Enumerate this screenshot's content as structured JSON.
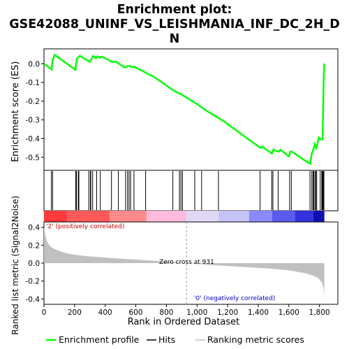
{
  "chart_data": {
    "type": "line",
    "title_lines": [
      "Enrichment plot:",
      "GSE42088_UNINF_VS_LEISHMANIA_INF_DC_2H_D",
      "N"
    ],
    "top_panel": {
      "ylabel": "Enrichment score (ES)",
      "ylim": [
        -0.57,
        0.08
      ],
      "yticks": [
        0.0,
        -0.1,
        -0.2,
        -0.3,
        -0.4,
        -0.5
      ],
      "ytick_labels": [
        "0.0",
        "-0.1",
        "-0.2",
        "-0.3",
        "-0.4",
        "-0.5"
      ],
      "line_color": "#00ff00",
      "series": [
        {
          "x": [
            0,
            50,
            55,
            70,
            205,
            215,
            235,
            300,
            320,
            340,
            350,
            365,
            380,
            445,
            470,
            500,
            530,
            545,
            560,
            575,
            590,
            600,
            660,
            680,
            710,
            790,
            850,
            900,
            950,
            1000,
            1050,
            1100,
            1150,
            1180,
            1220,
            1280,
            1330,
            1380,
            1415,
            1425,
            1445,
            1490,
            1500,
            1510,
            1535,
            1545,
            1560,
            1600,
            1610,
            1620,
            1700,
            1740,
            1750,
            1760,
            1770,
            1780,
            1795,
            1805,
            1820,
            1828,
            1832
          ],
          "y": [
            0.0,
            -0.03,
            0.015,
            0.048,
            -0.032,
            0.028,
            0.043,
            0.01,
            0.042,
            0.03,
            0.04,
            0.032,
            0.038,
            0.01,
            0.012,
            -0.005,
            -0.02,
            -0.012,
            -0.012,
            -0.018,
            -0.014,
            -0.02,
            -0.045,
            -0.055,
            -0.065,
            -0.11,
            -0.145,
            -0.165,
            -0.19,
            -0.215,
            -0.245,
            -0.27,
            -0.295,
            -0.31,
            -0.335,
            -0.37,
            -0.4,
            -0.43,
            -0.45,
            -0.443,
            -0.455,
            -0.48,
            -0.458,
            -0.465,
            -0.47,
            -0.46,
            -0.47,
            -0.495,
            -0.47,
            -0.47,
            -0.515,
            -0.535,
            -0.48,
            -0.46,
            -0.43,
            -0.45,
            -0.395,
            -0.405,
            -0.405,
            -0.07,
            0.002
          ]
        }
      ]
    },
    "hits": [
      48,
      57,
      207,
      212,
      224,
      228,
      293,
      303,
      306,
      318,
      344,
      368,
      441,
      486,
      533,
      546,
      556,
      566,
      588,
      664,
      842,
      885,
      895,
      905,
      985,
      1030,
      1140,
      1412,
      1488,
      1496,
      1530,
      1605,
      1616,
      1738,
      1750,
      1758,
      1762,
      1770,
      1776,
      1782,
      1805,
      1815,
      1818,
      1822,
      1825,
      1829
    ],
    "color_bar": {
      "stops": [
        "#ff3333",
        "#ff5555",
        "#ff8080",
        "#ffb0cc",
        "#e8b8e8",
        "#d0d0f8",
        "#a8a8f8",
        "#7070ff",
        "#4444ee",
        "#2222cc",
        "#0000aa"
      ],
      "bands": [
        {
          "x0": 0,
          "x1": 150,
          "color": "#ff3a3a"
        },
        {
          "x0": 150,
          "x1": 430,
          "color": "#ff5a5a"
        },
        {
          "x0": 430,
          "x1": 670,
          "color": "#ff8a8a"
        },
        {
          "x0": 670,
          "x1": 930,
          "color": "#ffbbdd"
        },
        {
          "x0": 930,
          "x1": 1140,
          "color": "#e0d8f4"
        },
        {
          "x0": 1140,
          "x1": 1340,
          "color": "#c4c4f6"
        },
        {
          "x0": 1340,
          "x1": 1490,
          "color": "#8a8aff"
        },
        {
          "x0": 1490,
          "x1": 1640,
          "color": "#5a5af0"
        },
        {
          "x0": 1640,
          "x1": 1760,
          "color": "#3333dd"
        },
        {
          "x0": 1760,
          "x1": 1832,
          "color": "#1010b0"
        }
      ]
    },
    "bottom_panel": {
      "ylabel": "Ranked list metric (Signal2Noise)",
      "xlabel": "Rank in Ordered Dataset",
      "ylim": [
        -0.46,
        0.46
      ],
      "xlim": [
        0,
        1920
      ],
      "yticks": [
        -0.4,
        -0.2,
        0.0,
        0.2,
        0.4
      ],
      "ytick_labels": [
        "-0.4",
        "-0.2",
        "0.0",
        "0.2",
        "0.4"
      ],
      "xticks": [
        0,
        200,
        400,
        600,
        800,
        1000,
        1200,
        1400,
        1600,
        1800
      ],
      "xtick_labels": [
        "0",
        "200",
        "400",
        "600",
        "800",
        "1,000",
        "1,200",
        "1,400",
        "1,600",
        "1,800"
      ],
      "metric": {
        "x": [
          0,
          10,
          25,
          50,
          80,
          120,
          160,
          220,
          300,
          400,
          500,
          600,
          700,
          800,
          900,
          931,
          1000,
          1100,
          1200,
          1300,
          1400,
          1500,
          1600,
          1700,
          1750,
          1780,
          1800,
          1815,
          1825,
          1830,
          1832
        ],
        "y": [
          0.4,
          0.3,
          0.22,
          0.175,
          0.15,
          0.125,
          0.105,
          0.09,
          0.075,
          0.062,
          0.05,
          0.04,
          0.03,
          0.018,
          0.006,
          0.0,
          -0.01,
          -0.022,
          -0.032,
          -0.042,
          -0.052,
          -0.064,
          -0.08,
          -0.11,
          -0.135,
          -0.155,
          -0.18,
          -0.215,
          -0.26,
          -0.34,
          -0.42
        ]
      },
      "zero_cross_label": "Zero cross at 931",
      "zero_cross_x": 931,
      "pos_label": "'2' (positively correlated)",
      "neg_label": "'0' (negatively correlated)"
    },
    "legend": {
      "items": [
        {
          "label": "Enrichment profile",
          "color": "#00ff00"
        },
        {
          "label": "Hits",
          "color": "#000000"
        },
        {
          "label": "Ranking metric scores",
          "color": "#c0c0c0"
        }
      ]
    }
  }
}
